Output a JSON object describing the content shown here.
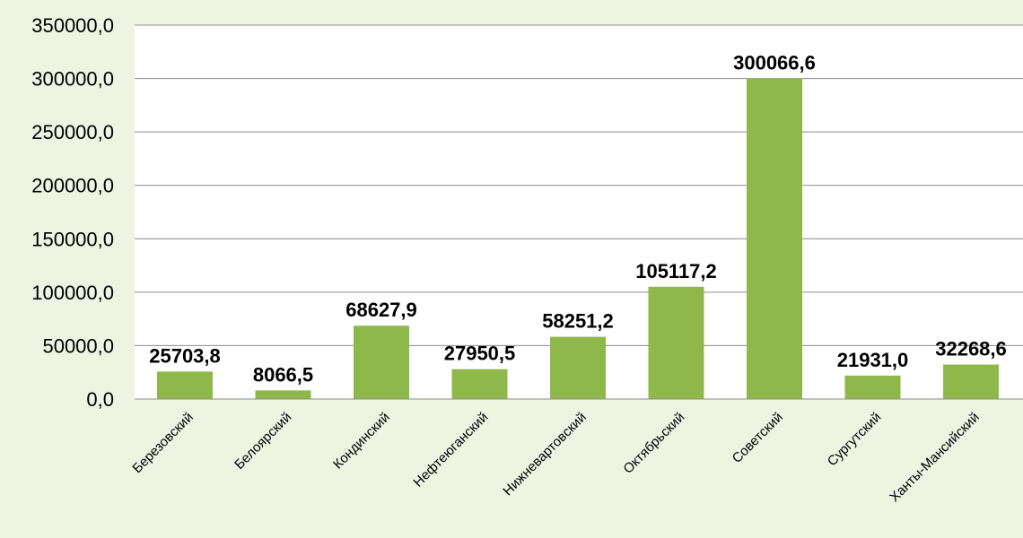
{
  "chart_data": {
    "type": "bar",
    "categories": [
      "Березовский",
      "Белоярский",
      "Кондинский",
      "Нефтеюганский",
      "Нижневартовский",
      "Октябрьский",
      "Советский",
      "Сургутский",
      "Ханты-Мансийский"
    ],
    "values": [
      25703.8,
      8066.5,
      68627.9,
      27950.5,
      58251.2,
      105117.2,
      300066.6,
      21931.0,
      32268.6
    ],
    "value_labels": [
      "25703,8",
      "8066,5",
      "68627,9",
      "27950,5",
      "58251,2",
      "105117,2",
      "300066,6",
      "21931,0",
      "32268,6"
    ],
    "y_ticks": [
      "0,0",
      "50000,0",
      "100000,0",
      "150000,0",
      "200000,0",
      "250000,0",
      "300000,0",
      "350000,0"
    ],
    "ylim": [
      0,
      350000
    ],
    "grid": true,
    "legend": "none",
    "colors": {
      "bar": "#8fb84a",
      "grid": "#8c8c8c",
      "background": "#eef3e2",
      "plot": "#ffffff"
    }
  }
}
